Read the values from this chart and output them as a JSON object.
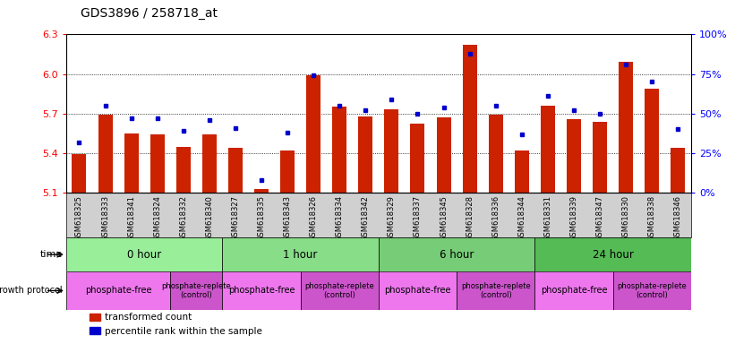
{
  "title": "GDS3896 / 258718_at",
  "samples": [
    "GSM618325",
    "GSM618333",
    "GSM618341",
    "GSM618324",
    "GSM618332",
    "GSM618340",
    "GSM618327",
    "GSM618335",
    "GSM618343",
    "GSM618326",
    "GSM618334",
    "GSM618342",
    "GSM618329",
    "GSM618337",
    "GSM618345",
    "GSM618328",
    "GSM618336",
    "GSM618344",
    "GSM618331",
    "GSM618339",
    "GSM618347",
    "GSM618330",
    "GSM618338",
    "GSM618346"
  ],
  "bar_values": [
    5.39,
    5.69,
    5.55,
    5.54,
    5.45,
    5.54,
    5.44,
    5.13,
    5.42,
    5.99,
    5.75,
    5.68,
    5.73,
    5.62,
    5.67,
    6.22,
    5.69,
    5.42,
    5.76,
    5.66,
    5.64,
    6.09,
    5.89,
    5.44
  ],
  "bar_bottom": 5.1,
  "percentile_values": [
    0.32,
    0.55,
    0.47,
    0.47,
    0.39,
    0.46,
    0.41,
    0.08,
    0.38,
    0.74,
    0.55,
    0.52,
    0.59,
    0.5,
    0.54,
    0.88,
    0.55,
    0.37,
    0.61,
    0.52,
    0.5,
    0.81,
    0.7,
    0.4
  ],
  "ylim": [
    5.1,
    6.3
  ],
  "yticks_left": [
    5.1,
    5.4,
    5.7,
    6.0,
    6.3
  ],
  "yticks_right": [
    0,
    25,
    50,
    75,
    100
  ],
  "right_ylabels": [
    "0%",
    "25%",
    "50%",
    "75%",
    "100%"
  ],
  "bar_color": "#cc2200",
  "dot_color": "#0000cc",
  "time_groups": [
    {
      "label": "0 hour",
      "start": 0,
      "end": 6,
      "color": "#99ee99"
    },
    {
      "label": "1 hour",
      "start": 6,
      "end": 12,
      "color": "#88dd88"
    },
    {
      "label": "6 hour",
      "start": 12,
      "end": 18,
      "color": "#77cc77"
    },
    {
      "label": "24 hour",
      "start": 18,
      "end": 24,
      "color": "#55bb55"
    }
  ],
  "protocol_groups": [
    {
      "label": "phosphate-free",
      "start": 0,
      "end": 4,
      "color": "#ee77ee",
      "fontsize": 7
    },
    {
      "label": "phosphate-replete\n(control)",
      "start": 4,
      "end": 6,
      "color": "#cc55cc",
      "fontsize": 6
    },
    {
      "label": "phosphate-free",
      "start": 6,
      "end": 9,
      "color": "#ee77ee",
      "fontsize": 7
    },
    {
      "label": "phosphate-replete\n(control)",
      "start": 9,
      "end": 12,
      "color": "#cc55cc",
      "fontsize": 6
    },
    {
      "label": "phosphate-free",
      "start": 12,
      "end": 15,
      "color": "#ee77ee",
      "fontsize": 7
    },
    {
      "label": "phosphate-replete\n(control)",
      "start": 15,
      "end": 18,
      "color": "#cc55cc",
      "fontsize": 6
    },
    {
      "label": "phosphate-free",
      "start": 18,
      "end": 21,
      "color": "#ee77ee",
      "fontsize": 7
    },
    {
      "label": "phosphate-replete\n(control)",
      "start": 21,
      "end": 24,
      "color": "#cc55cc",
      "fontsize": 6
    }
  ],
  "legend_items": [
    {
      "label": "transformed count",
      "color": "#cc2200"
    },
    {
      "label": "percentile rank within the sample",
      "color": "#0000cc"
    }
  ],
  "xtick_bg": "#d8d8d8",
  "plot_bg": "#ffffff"
}
